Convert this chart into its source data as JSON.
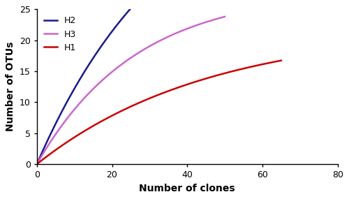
{
  "title": "",
  "xlabel": "Number of clones",
  "ylabel": "Number of OTUs",
  "xlim": [
    0,
    80
  ],
  "ylim": [
    0,
    25
  ],
  "xticks": [
    0,
    20,
    40,
    60,
    80
  ],
  "yticks": [
    0,
    5,
    10,
    15,
    20,
    25
  ],
  "series": [
    {
      "label": "H2",
      "color": "#1a1a8c",
      "end_x": 45,
      "a": 50,
      "b": 0.028
    },
    {
      "label": "H3",
      "color": "#cc66cc",
      "end_x": 50,
      "a": 28,
      "b": 0.038
    },
    {
      "label": "H1",
      "color": "#cc0000",
      "end_x": 65,
      "a": 22,
      "b": 0.022
    }
  ],
  "legend_fontsize": 9,
  "axis_fontsize": 10,
  "tick_fontsize": 9,
  "linewidth": 1.8,
  "fig_width": 5.0,
  "fig_height": 2.85,
  "dpi": 100
}
